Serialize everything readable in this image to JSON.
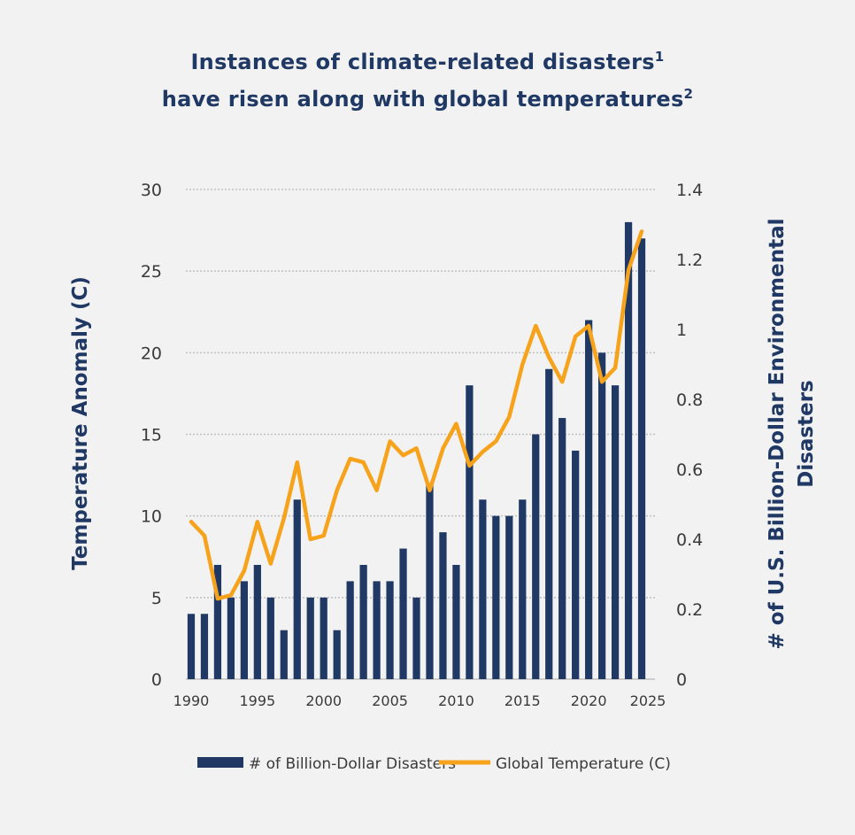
{
  "title": {
    "line1": "Instances of climate-related disasters",
    "line1_sup": "1",
    "line2": "have risen along with global temperatures",
    "line2_sup": "2"
  },
  "chart_data": {
    "type": "bar",
    "left_axis": {
      "label": "Temperature Anomaly (C)",
      "range": [
        0,
        30
      ],
      "ticks": [
        "0",
        "5",
        "10",
        "15",
        "20",
        "25",
        "30"
      ]
    },
    "right_axis": {
      "label_line1": "# of U.S. Billion-Dollar Environmental",
      "label_line2": "Disasters",
      "range": [
        0,
        1.4
      ],
      "ticks": [
        "0",
        "0.2",
        "0.4",
        "0.6",
        "0.8",
        "1",
        "1.2",
        "1.4"
      ]
    },
    "x": [
      1990,
      1991,
      1992,
      1993,
      1994,
      1995,
      1996,
      1997,
      1998,
      1999,
      2000,
      2001,
      2002,
      2003,
      2004,
      2005,
      2006,
      2007,
      2008,
      2009,
      2010,
      2011,
      2012,
      2013,
      2014,
      2015,
      2016,
      2017,
      2018,
      2019,
      2020,
      2021,
      2022,
      2023,
      2024
    ],
    "x_tick_labels": [
      "1990",
      "1995",
      "2000",
      "2005",
      "2010",
      "2015",
      "2020",
      "2025"
    ],
    "grid": true,
    "series": [
      {
        "name": "# of Billion-Dollar Disasters",
        "kind": "bar",
        "axis": "left",
        "color": "#1f3864",
        "values": [
          4,
          4,
          7,
          5,
          6,
          7,
          5,
          3,
          11,
          5,
          5,
          3,
          6,
          7,
          6,
          6,
          8,
          5,
          12,
          9,
          7,
          18,
          11,
          10,
          10,
          11,
          15,
          19,
          16,
          14,
          22,
          20,
          18,
          28,
          27
        ]
      },
      {
        "name": "Global Temperature (C)",
        "kind": "line",
        "axis": "right",
        "color": "#f7a21b",
        "values": [
          0.45,
          0.41,
          0.23,
          0.24,
          0.31,
          0.45,
          0.33,
          0.46,
          0.62,
          0.4,
          0.41,
          0.54,
          0.63,
          0.62,
          0.54,
          0.68,
          0.64,
          0.66,
          0.54,
          0.66,
          0.73,
          0.61,
          0.65,
          0.68,
          0.75,
          0.9,
          1.01,
          0.92,
          0.85,
          0.98,
          1.01,
          0.85,
          0.89,
          1.17,
          1.28
        ]
      }
    ],
    "legend_position": "bottom"
  },
  "colors": {
    "background": "#f2f2f2",
    "navy": "#1f3864",
    "orange": "#f7a21b",
    "grid": "#bfbfbf"
  }
}
